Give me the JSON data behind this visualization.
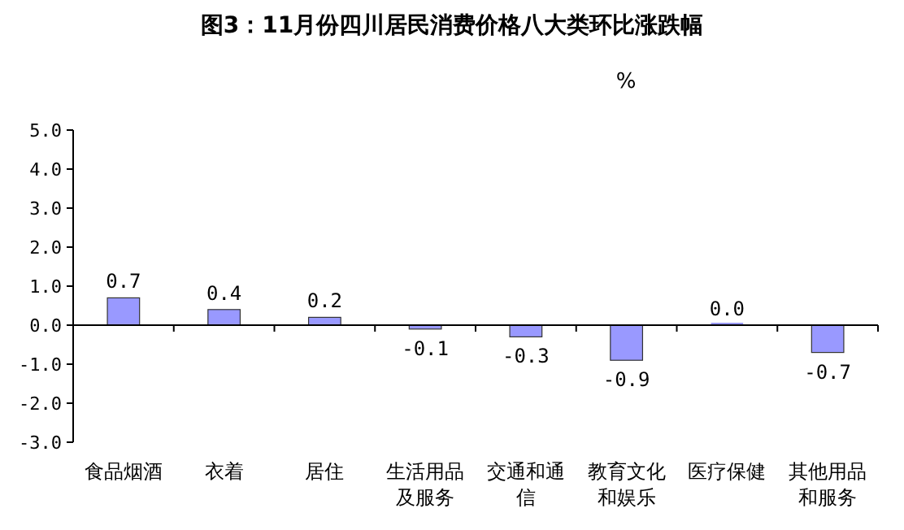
{
  "chart_data": {
    "type": "bar",
    "title": "图3：11月份四川居民消费价格八大类环比涨跌幅",
    "ylabel": "%",
    "categories": [
      "食品烟酒",
      "衣着",
      "居住",
      "生活用品及服务",
      "交通和通信",
      "教育文化和娱乐",
      "医疗保健",
      "其他用品和服务"
    ],
    "values": [
      0.7,
      0.4,
      0.2,
      -0.1,
      -0.3,
      -0.9,
      0.0,
      -0.7
    ],
    "color": "#9999ff",
    "ylim": [
      -3.0,
      5.0
    ],
    "yticks": [
      {
        "value": -3,
        "label": "-3.0"
      },
      {
        "value": -2,
        "label": "-2.0"
      },
      {
        "value": -1,
        "label": "-1.0"
      },
      {
        "value": 0,
        "label": "0.0"
      },
      {
        "value": 1,
        "label": "1.0"
      },
      {
        "value": 2,
        "label": "2.0"
      },
      {
        "value": 3,
        "label": "3.0"
      },
      {
        "value": 4,
        "label": "4.0"
      },
      {
        "value": 5,
        "label": "5.0"
      }
    ],
    "value_labels": [
      "0.7",
      "0.4",
      "0.2",
      "-0.1",
      "-0.3",
      "-0.9",
      "0.0",
      "-0.7"
    ]
  }
}
